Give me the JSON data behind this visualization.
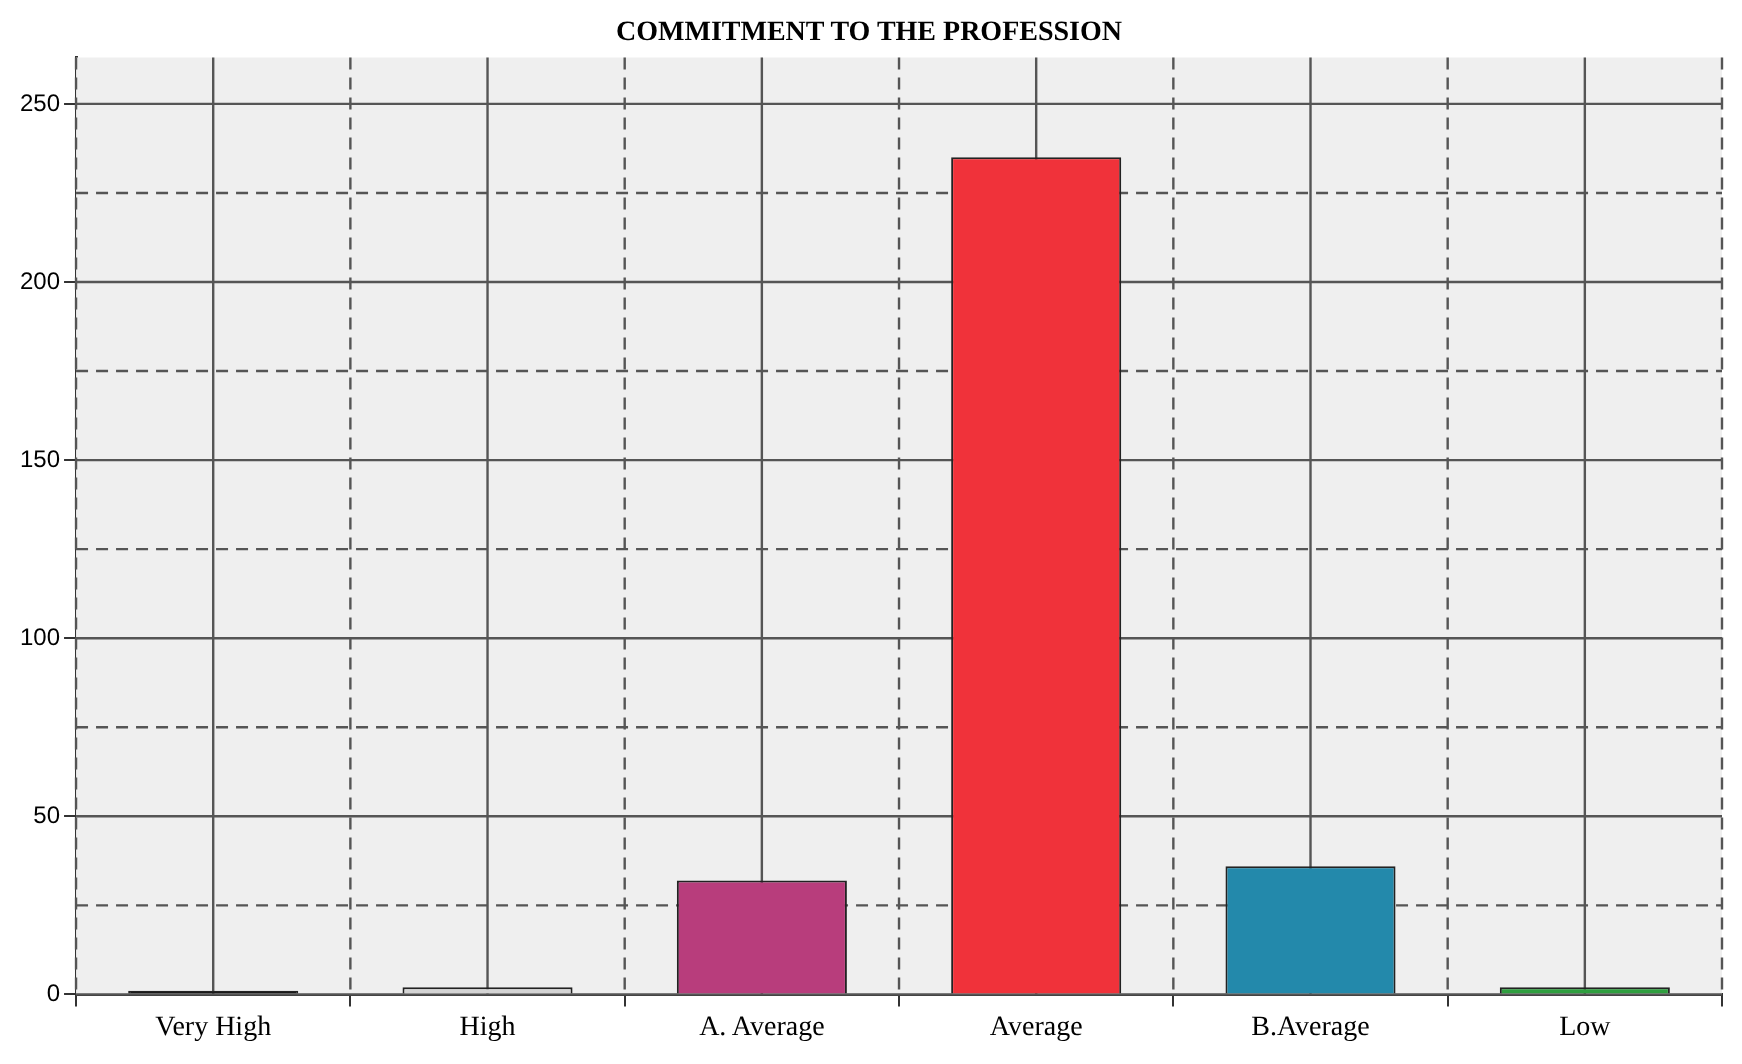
{
  "chart_data": {
    "type": "bar",
    "title": "COMMITMENT TO THE PROFESSION",
    "categories": [
      "Very High",
      "High",
      "A. Average",
      "Average",
      "B.Average",
      "Low"
    ],
    "values": [
      1,
      2,
      32,
      235,
      36,
      2
    ],
    "colors": [
      "#1a1a1a",
      "#d4d4d4",
      "#b83d7c",
      "#f0323a",
      "#2389ab",
      "#2f9e3f"
    ],
    "ylim": [
      0,
      263
    ],
    "yticks": [
      0,
      {
        "value": 25,
        "label": null
      },
      50,
      {
        "value": 75,
        "label": null
      },
      100,
      {
        "value": 125,
        "label": null
      },
      150,
      {
        "value": 175,
        "label": null
      },
      200,
      {
        "value": 225,
        "label": null
      },
      250
    ],
    "grid": true
  }
}
